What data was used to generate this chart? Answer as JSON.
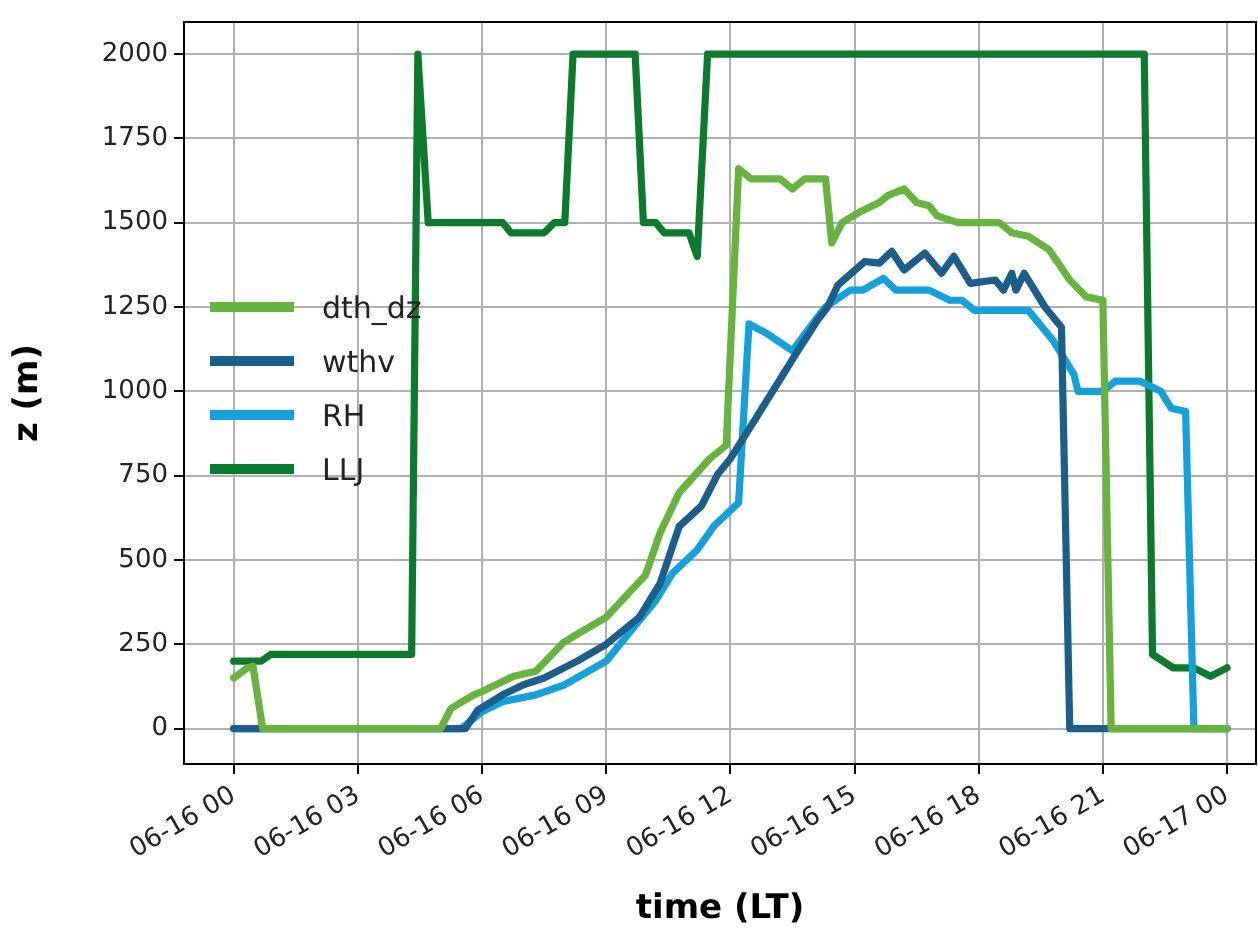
{
  "chart_data": {
    "type": "line",
    "xlabel": "time (LT)",
    "ylabel": "z (m)",
    "xlim": [
      "--06-15T22:48",
      "--06-17T00:42"
    ],
    "ylim": [
      -105,
      2095
    ],
    "xticks": [
      {
        "value": "--06-16T00:00",
        "label": "06-16 00"
      },
      {
        "value": "--06-16T03:00",
        "label": "06-16 03"
      },
      {
        "value": "--06-16T06:00",
        "label": "06-16 06"
      },
      {
        "value": "--06-16T09:00",
        "label": "06-16 09"
      },
      {
        "value": "--06-16T12:00",
        "label": "06-16 12"
      },
      {
        "value": "--06-16T15:00",
        "label": "06-16 15"
      },
      {
        "value": "--06-16T18:00",
        "label": "06-16 18"
      },
      {
        "value": "--06-16T21:00",
        "label": "06-16 21"
      },
      {
        "value": "--06-17T00:00",
        "label": "06-17 00"
      }
    ],
    "yticks": [
      0,
      250,
      500,
      750,
      1000,
      1250,
      1500,
      1750,
      2000
    ],
    "grid": true,
    "legend": "left",
    "marker": "none",
    "line_style": "solid",
    "series": [
      {
        "name": "dth_dz",
        "color": "#66b33d",
        "x": [
          "--06-16T00:00",
          "--06-16T00:20",
          "--06-16T00:28",
          "--06-16T00:42",
          "--06-16T05:00",
          "--06-16T05:15",
          "--06-16T05:48",
          "--06-16T06:00",
          "--06-16T06:46",
          "--06-16T07:18",
          "--06-16T07:58",
          "--06-16T08:18",
          "--06-16T09:00",
          "--06-16T09:57",
          "--06-16T10:18",
          "--06-16T10:46",
          "--06-16T11:30",
          "--06-16T11:54",
          "--06-16T12:12",
          "--06-16T12:30",
          "--06-16T13:12",
          "--06-16T13:30",
          "--06-16T13:48",
          "--06-16T14:18",
          "--06-16T14:27",
          "--06-16T14:42",
          "--06-16T15:06",
          "--06-16T15:36",
          "--06-16T15:48",
          "--06-16T16:12",
          "--06-16T16:30",
          "--06-16T16:48",
          "--06-16T17:00",
          "--06-16T17:30",
          "--06-16T18:30",
          "--06-16T18:48",
          "--06-16T19:12",
          "--06-16T19:42",
          "--06-16T20:12",
          "--06-16T20:36",
          "--06-16T21:00",
          "--06-16T21:12",
          "--06-17T00:00"
        ],
        "values": [
          150,
          180,
          185,
          0,
          0,
          60,
          100,
          110,
          155,
          170,
          255,
          280,
          330,
          455,
          580,
          700,
          800,
          840,
          1660,
          1630,
          1630,
          1600,
          1630,
          1630,
          1440,
          1500,
          1530,
          1560,
          1580,
          1600,
          1560,
          1550,
          1520,
          1500,
          1500,
          1470,
          1460,
          1420,
          1330,
          1280,
          1270,
          0,
          0
        ]
      },
      {
        "name": "wthv",
        "color": "#1b5e8a",
        "x": [
          "--06-16T00:00",
          "--06-16T05:36",
          "--06-16T05:54",
          "--06-16T06:30",
          "--06-16T07:00",
          "--06-16T07:30",
          "--06-16T08:18",
          "--06-16T09:00",
          "--06-16T09:48",
          "--06-16T10:18",
          "--06-16T10:46",
          "--06-16T11:18",
          "--06-16T11:42",
          "--06-16T12:00",
          "--06-16T12:36",
          "--06-16T13:36",
          "--06-16T14:06",
          "--06-16T14:21",
          "--06-16T14:36",
          "--06-16T15:15",
          "--06-16T15:36",
          "--06-16T15:54",
          "--06-16T16:12",
          "--06-16T16:42",
          "--06-16T17:06",
          "--06-16T17:24",
          "--06-16T17:48",
          "--06-16T18:24",
          "--06-16T18:36",
          "--06-16T18:48",
          "--06-16T18:54",
          "--06-16T19:06",
          "--06-16T19:36",
          "--06-16T20:00",
          "--06-16T20:12",
          "--06-17T00:00"
        ],
        "values": [
          0,
          0,
          55,
          100,
          130,
          150,
          200,
          250,
          330,
          430,
          600,
          660,
          755,
          800,
          917,
          1114,
          1210,
          1250,
          1315,
          1385,
          1380,
          1415,
          1360,
          1410,
          1350,
          1400,
          1320,
          1330,
          1300,
          1350,
          1300,
          1350,
          1250,
          1190,
          0,
          0
        ]
      },
      {
        "name": "RH",
        "color": "#14a0db",
        "x": [
          "--06-16T00:00",
          "--06-16T05:30",
          "--06-16T06:00",
          "--06-16T06:30",
          "--06-16T07:18",
          "--06-16T08:00",
          "--06-16T09:00",
          "--06-16T09:36",
          "--06-16T10:12",
          "--06-16T10:36",
          "--06-16T11:12",
          "--06-16T11:36",
          "--06-16T12:12",
          "--06-16T12:27",
          "--06-16T12:54",
          "--06-16T13:30",
          "--06-16T13:48",
          "--06-16T14:18",
          "--06-16T14:54",
          "--06-16T15:12",
          "--06-16T15:42",
          "--06-16T16:00",
          "--06-16T16:48",
          "--06-16T17:18",
          "--06-16T17:36",
          "--06-16T17:54",
          "--06-16T19:12",
          "--06-16T19:48",
          "--06-16T20:18",
          "--06-16T20:24",
          "--06-16T21:00",
          "--06-16T21:18",
          "--06-16T21:54",
          "--06-16T22:24",
          "--06-16T22:39",
          "--06-16T23:00",
          "--06-16T23:12",
          "--06-17T00:00"
        ],
        "values": [
          0,
          0,
          50,
          80,
          100,
          130,
          200,
          290,
          380,
          460,
          530,
          600,
          670,
          1200,
          1170,
          1120,
          1170,
          1250,
          1300,
          1300,
          1335,
          1300,
          1300,
          1270,
          1270,
          1240,
          1240,
          1150,
          1050,
          1000,
          1000,
          1030,
          1030,
          1000,
          950,
          940,
          0,
          0
        ]
      },
      {
        "name": "LLJ",
        "color": "#0b7a2c",
        "x": [
          "--06-16T00:00",
          "--06-16T00:40",
          "--06-16T00:54",
          "--06-16T04:18",
          "--06-16T04:27",
          "--06-16T04:42",
          "--06-16T06:30",
          "--06-16T06:42",
          "--06-16T07:30",
          "--06-16T07:45",
          "--06-16T08:00",
          "--06-16T08:12",
          "--06-16T09:42",
          "--06-16T09:54",
          "--06-16T10:12",
          "--06-16T10:24",
          "--06-16T11:00",
          "--06-16T11:12",
          "--06-16T11:27",
          "--06-16T22:00",
          "--06-16T22:12",
          "--06-16T22:42",
          "--06-16T23:12",
          "--06-16T23:36",
          "--06-17T00:00"
        ],
        "values": [
          200,
          200,
          220,
          220,
          2000,
          1500,
          1500,
          1470,
          1470,
          1500,
          1500,
          2000,
          2000,
          1500,
          1500,
          1470,
          1470,
          1400,
          2000,
          2000,
          220,
          180,
          180,
          155,
          180
        ]
      }
    ]
  }
}
